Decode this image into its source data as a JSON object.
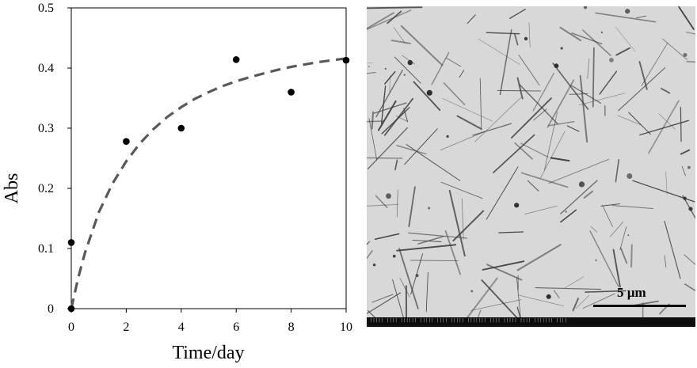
{
  "chart_data": {
    "type": "scatter",
    "title": "",
    "xlabel": "Time/day",
    "ylabel": "Abs",
    "xlim": [
      0,
      10
    ],
    "ylim": [
      0,
      0.5
    ],
    "xticks": [
      "0",
      "2",
      "4",
      "6",
      "8",
      "10"
    ],
    "yticks": [
      "0",
      "0.1",
      "0.2",
      "0.3",
      "0.4",
      "0.5"
    ],
    "grid": false,
    "legend": "none",
    "series": [
      {
        "type": "scatter",
        "x": [
          0,
          0,
          2,
          4,
          6,
          8,
          10
        ],
        "y": [
          0,
          0.11,
          0.278,
          0.3,
          0.414,
          0.36,
          0.413
        ]
      },
      {
        "type": "line",
        "style": "dashed",
        "x": [
          0,
          0.25,
          0.5,
          1,
          1.5,
          2,
          2.5,
          3,
          3.5,
          4,
          4.5,
          5,
          5.5,
          6,
          6.5,
          7,
          7.5,
          8,
          8.5,
          9,
          9.5,
          10
        ],
        "y": [
          0,
          0.051,
          0.093,
          0.16,
          0.208,
          0.245,
          0.275,
          0.299,
          0.319,
          0.335,
          0.349,
          0.36,
          0.37,
          0.378,
          0.385,
          0.391,
          0.397,
          0.402,
          0.406,
          0.41,
          0.413,
          0.416
        ]
      }
    ],
    "colors": {
      "points": "#000000",
      "fit": "#595959"
    }
  },
  "micrograph": {
    "scale_bar_label": "5 µm"
  }
}
